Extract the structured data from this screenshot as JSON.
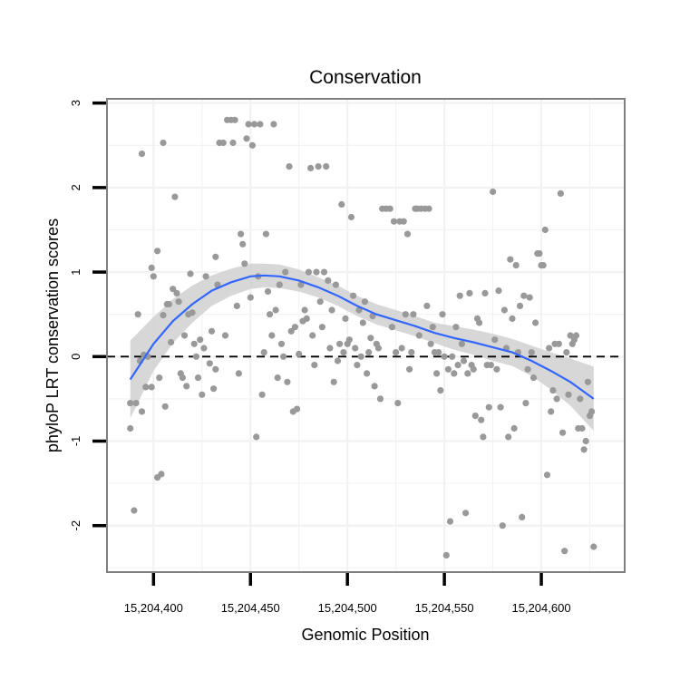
{
  "chart_data": {
    "type": "scatter",
    "title": "Conservation",
    "xlabel": "Genomic Position",
    "ylabel": "phyloP LRT conservation scores",
    "xlim": [
      15204376,
      15204643
    ],
    "ylim": [
      -2.55,
      3.05
    ],
    "x_ticks": [
      15204400,
      15204450,
      15204500,
      15204550,
      15204600
    ],
    "x_tick_labels": [
      "15,204,400",
      "15,204,450",
      "15,204,500",
      "15,204,550",
      "15,204,600"
    ],
    "y_ticks": [
      -2,
      -1,
      0,
      1,
      2,
      3
    ],
    "y_tick_labels": [
      "-2",
      "-1",
      "0",
      "1",
      "2",
      "3"
    ],
    "reference_line": {
      "y": 0,
      "style": "dashed"
    },
    "colors": {
      "points": "#999999",
      "smooth_line": "#3366ff",
      "confidence_band": "#d3d3d3",
      "grid": "#f2f2f2",
      "panel_border": "#7f7f7f",
      "reference_line": "#000000"
    },
    "series": [
      {
        "name": "phyloP scores",
        "points": [
          [
            15204388,
            -0.55
          ],
          [
            15204388,
            -0.85
          ],
          [
            15204390,
            -1.82
          ],
          [
            15204391,
            -0.55
          ],
          [
            15204392,
            0.5
          ],
          [
            15204393,
            -0.05
          ],
          [
            15204394,
            -0.65
          ],
          [
            15204394,
            2.4
          ],
          [
            15204395,
            0.02
          ],
          [
            15204396,
            -0.36
          ],
          [
            15204397,
            0.0
          ],
          [
            15204399,
            -0.36
          ],
          [
            15204399,
            1.05
          ],
          [
            15204400,
            0.95
          ],
          [
            15204402,
            -1.43
          ],
          [
            15204402,
            1.25
          ],
          [
            15204403,
            -0.25
          ],
          [
            15204404,
            -1.39
          ],
          [
            15204405,
            2.53
          ],
          [
            15204405,
            0.49
          ],
          [
            15204406,
            -0.59
          ],
          [
            15204407,
            0.62
          ],
          [
            15204408,
            0.62
          ],
          [
            15204409,
            0.17
          ],
          [
            15204410,
            0.8
          ],
          [
            15204411,
            1.89
          ],
          [
            15204412,
            0.75
          ],
          [
            15204413,
            0.65
          ],
          [
            15204414,
            -0.2
          ],
          [
            15204415,
            -0.25
          ],
          [
            15204416,
            0.25
          ],
          [
            15204417,
            -0.35
          ],
          [
            15204418,
            0.5
          ],
          [
            15204419,
            0.98
          ],
          [
            15204420,
            0.52
          ],
          [
            15204421,
            0.15
          ],
          [
            15204422,
            0.0
          ],
          [
            15204423,
            -0.25
          ],
          [
            15204424,
            0.2
          ],
          [
            15204425,
            -0.45
          ],
          [
            15204426,
            0.1
          ],
          [
            15204427,
            0.95
          ],
          [
            15204429,
            -0.08
          ],
          [
            15204430,
            0.3
          ],
          [
            15204431,
            -0.38
          ],
          [
            15204432,
            1.18
          ],
          [
            15204432,
            -0.15
          ],
          [
            15204433,
            0.85
          ],
          [
            15204434,
            2.53
          ],
          [
            15204436,
            2.53
          ],
          [
            15204437,
            0.25
          ],
          [
            15204438,
            2.8
          ],
          [
            15204440,
            2.8
          ],
          [
            15204441,
            2.53
          ],
          [
            15204442,
            2.8
          ],
          [
            15204443,
            0.6
          ],
          [
            15204444,
            -0.2
          ],
          [
            15204445,
            1.45
          ],
          [
            15204446,
            1.33
          ],
          [
            15204447,
            1.1
          ],
          [
            15204448,
            2.58
          ],
          [
            15204449,
            2.75
          ],
          [
            15204450,
            0.7
          ],
          [
            15204451,
            2.5
          ],
          [
            15204452,
            2.75
          ],
          [
            15204453,
            -0.95
          ],
          [
            15204454,
            0.95
          ],
          [
            15204455,
            2.75
          ],
          [
            15204456,
            -0.45
          ],
          [
            15204457,
            0.05
          ],
          [
            15204458,
            1.45
          ],
          [
            15204459,
            0.77
          ],
          [
            15204460,
            0.5
          ],
          [
            15204461,
            0.25
          ],
          [
            15204462,
            2.75
          ],
          [
            15204463,
            0.55
          ],
          [
            15204464,
            -0.25
          ],
          [
            15204465,
            0.85
          ],
          [
            15204466,
            0.15
          ],
          [
            15204467,
            0.0
          ],
          [
            15204468,
            1.0
          ],
          [
            15204469,
            -0.3
          ],
          [
            15204470,
            2.25
          ],
          [
            15204471,
            0.3
          ],
          [
            15204472,
            -0.65
          ],
          [
            15204473,
            0.35
          ],
          [
            15204474,
            -0.62
          ],
          [
            15204475,
            0.03
          ],
          [
            15204476,
            0.85
          ],
          [
            15204477,
            0.42
          ],
          [
            15204478,
            0.55
          ],
          [
            15204479,
            0.45
          ],
          [
            15204480,
            1.0
          ],
          [
            15204481,
            2.23
          ],
          [
            15204482,
            0.25
          ],
          [
            15204483,
            -0.1
          ],
          [
            15204484,
            1.0
          ],
          [
            15204485,
            2.25
          ],
          [
            15204486,
            0.65
          ],
          [
            15204487,
            0.35
          ],
          [
            15204488,
            1.0
          ],
          [
            15204489,
            2.25
          ],
          [
            15204490,
            0.9
          ],
          [
            15204491,
            0.1
          ],
          [
            15204492,
            0.55
          ],
          [
            15204493,
            -0.3
          ],
          [
            15204494,
            0.85
          ],
          [
            15204495,
            -0.05
          ],
          [
            15204496,
            0.15
          ],
          [
            15204497,
            1.8
          ],
          [
            15204498,
            0.05
          ],
          [
            15204499,
            0.45
          ],
          [
            15204500,
            0.15
          ],
          [
            15204501,
            0.2
          ],
          [
            15204502,
            1.65
          ],
          [
            15204503,
            0.72
          ],
          [
            15204504,
            0.1
          ],
          [
            15204505,
            -0.1
          ],
          [
            15204506,
            0.55
          ],
          [
            15204507,
            0.0
          ],
          [
            15204508,
            0.4
          ],
          [
            15204509,
            0.65
          ],
          [
            15204510,
            -0.2
          ],
          [
            15204511,
            0.05
          ],
          [
            15204512,
            0.22
          ],
          [
            15204513,
            0.48
          ],
          [
            15204514,
            -0.35
          ],
          [
            15204515,
            0.15
          ],
          [
            15204516,
            0.1
          ],
          [
            15204517,
            -0.5
          ],
          [
            15204518,
            1.75
          ],
          [
            15204520,
            1.75
          ],
          [
            15204522,
            1.75
          ],
          [
            15204523,
            0.35
          ],
          [
            15204524,
            1.6
          ],
          [
            15204525,
            0.05
          ],
          [
            15204526,
            -0.55
          ],
          [
            15204527,
            1.6
          ],
          [
            15204528,
            0.1
          ],
          [
            15204529,
            1.6
          ],
          [
            15204530,
            0.5
          ],
          [
            15204531,
            1.45
          ],
          [
            15204532,
            -0.15
          ],
          [
            15204533,
            0.05
          ],
          [
            15204534,
            0.5
          ],
          [
            15204535,
            1.75
          ],
          [
            15204536,
            1.75
          ],
          [
            15204537,
            0.25
          ],
          [
            15204538,
            1.75
          ],
          [
            15204540,
            1.75
          ],
          [
            15204541,
            0.6
          ],
          [
            15204542,
            1.75
          ],
          [
            15204543,
            0.15
          ],
          [
            15204544,
            0.35
          ],
          [
            15204545,
            0.05
          ],
          [
            15204546,
            -0.2
          ],
          [
            15204547,
            0.05
          ],
          [
            15204548,
            -0.4
          ],
          [
            15204549,
            0.5
          ],
          [
            15204550,
            0.0
          ],
          [
            15204551,
            -2.35
          ],
          [
            15204552,
            -0.15
          ],
          [
            15204553,
            -1.95
          ],
          [
            15204554,
            0.0
          ],
          [
            15204555,
            -0.2
          ],
          [
            15204556,
            0.35
          ],
          [
            15204557,
            -0.1
          ],
          [
            15204558,
            0.72
          ],
          [
            15204559,
            0.15
          ],
          [
            15204560,
            -0.05
          ],
          [
            15204561,
            -1.85
          ],
          [
            15204562,
            -0.2
          ],
          [
            15204563,
            0.75
          ],
          [
            15204564,
            -0.1
          ],
          [
            15204565,
            -0.15
          ],
          [
            15204566,
            -0.7
          ],
          [
            15204567,
            0.45
          ],
          [
            15204568,
            0.4
          ],
          [
            15204569,
            -0.75
          ],
          [
            15204570,
            -0.95
          ],
          [
            15204571,
            0.75
          ],
          [
            15204572,
            -0.1
          ],
          [
            15204573,
            -0.6
          ],
          [
            15204574,
            -0.1
          ],
          [
            15204575,
            1.95
          ],
          [
            15204576,
            0.2
          ],
          [
            15204577,
            -0.15
          ],
          [
            15204578,
            0.78
          ],
          [
            15204579,
            -0.6
          ],
          [
            15204580,
            -2.0
          ],
          [
            15204581,
            0.55
          ],
          [
            15204582,
            0.1
          ],
          [
            15204583,
            -0.95
          ],
          [
            15204584,
            1.15
          ],
          [
            15204585,
            0.45
          ],
          [
            15204586,
            -0.85
          ],
          [
            15204587,
            1.08
          ],
          [
            15204588,
            0.05
          ],
          [
            15204589,
            0.6
          ],
          [
            15204590,
            -1.9
          ],
          [
            15204591,
            0.72
          ],
          [
            15204592,
            -0.55
          ],
          [
            15204593,
            -0.15
          ],
          [
            15204594,
            0.7
          ],
          [
            15204595,
            0.05
          ],
          [
            15204596,
            -0.25
          ],
          [
            15204597,
            0.4
          ],
          [
            15204598,
            1.22
          ],
          [
            15204599,
            1.22
          ],
          [
            15204600,
            1.08
          ],
          [
            15204601,
            1.08
          ],
          [
            15204602,
            1.5
          ],
          [
            15204603,
            -1.4
          ],
          [
            15204604,
            0.1
          ],
          [
            15204605,
            -0.65
          ],
          [
            15204606,
            -0.4
          ],
          [
            15204607,
            0.15
          ],
          [
            15204608,
            -0.5
          ],
          [
            15204609,
            0.15
          ],
          [
            15204610,
            1.93
          ],
          [
            15204611,
            -0.9
          ],
          [
            15204612,
            -2.3
          ],
          [
            15204613,
            0.05
          ],
          [
            15204614,
            -0.45
          ],
          [
            15204615,
            0.25
          ],
          [
            15204616,
            0.15
          ],
          [
            15204617,
            0.2
          ],
          [
            15204618,
            0.25
          ],
          [
            15204619,
            -0.85
          ],
          [
            15204620,
            -0.5
          ],
          [
            15204621,
            -0.85
          ],
          [
            15204622,
            -1.1
          ],
          [
            15204623,
            -1.0
          ],
          [
            15204624,
            -0.3
          ],
          [
            15204625,
            -0.7
          ],
          [
            15204626,
            -0.65
          ],
          [
            15204627,
            -2.25
          ]
        ]
      }
    ],
    "smooth": {
      "name": "loess fit",
      "x": [
        15204388,
        15204400,
        15204410,
        15204420,
        15204430,
        15204440,
        15204450,
        15204457,
        15204465,
        15204475,
        15204485,
        15204495,
        15204505,
        15204515,
        15204525,
        15204535,
        15204545,
        15204555,
        15204565,
        15204575,
        15204585,
        15204595,
        15204605,
        15204615,
        15204627
      ],
      "y": [
        -0.27,
        0.15,
        0.42,
        0.62,
        0.78,
        0.88,
        0.95,
        0.96,
        0.95,
        0.9,
        0.82,
        0.72,
        0.6,
        0.5,
        0.43,
        0.36,
        0.28,
        0.22,
        0.17,
        0.11,
        0.05,
        -0.05,
        -0.17,
        -0.3,
        -0.5
      ],
      "lower": [
        -0.73,
        -0.17,
        0.16,
        0.4,
        0.6,
        0.72,
        0.8,
        0.82,
        0.81,
        0.77,
        0.7,
        0.6,
        0.48,
        0.38,
        0.31,
        0.24,
        0.16,
        0.08,
        0.02,
        -0.05,
        -0.11,
        -0.23,
        -0.39,
        -0.58,
        -0.88
      ],
      "upper": [
        0.19,
        0.47,
        0.68,
        0.84,
        0.96,
        1.04,
        1.1,
        1.1,
        1.09,
        1.03,
        0.94,
        0.84,
        0.72,
        0.62,
        0.55,
        0.48,
        0.4,
        0.36,
        0.32,
        0.27,
        0.21,
        0.13,
        0.05,
        -0.02,
        -0.12
      ]
    }
  }
}
